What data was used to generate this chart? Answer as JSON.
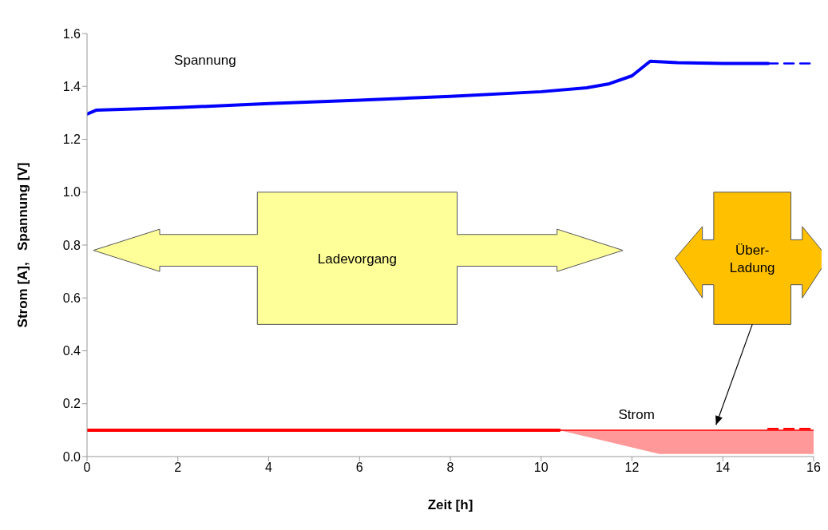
{
  "chart_data": {
    "type": "line",
    "xlabel": "Zeit [h]",
    "ylabel": "Strom [A],   Spannung [V]",
    "xlim": [
      0,
      16
    ],
    "ylim": [
      0,
      1.6
    ],
    "xticks": [
      0,
      2,
      4,
      6,
      8,
      10,
      12,
      14,
      16
    ],
    "yticks": [
      {
        "value": 0,
        "label": "0.0"
      },
      {
        "value": 0.2,
        "label": "0.2"
      },
      {
        "value": 0.4,
        "label": "0.4"
      },
      {
        "value": 0.6,
        "label": "0.6"
      },
      {
        "value": 0.8,
        "label": "0.8"
      },
      {
        "value": 1,
        "label": "1.0"
      },
      {
        "value": 1.2,
        "label": "1.2"
      },
      {
        "value": 1.4,
        "label": "1.4"
      },
      {
        "value": 1.6,
        "label": "1.6"
      }
    ],
    "marker": "none",
    "series": [
      {
        "color": "#0000ff",
        "line_style": "solid",
        "x": [
          0,
          0.2,
          2,
          4,
          6,
          8,
          10,
          11,
          11.5,
          12,
          12.4,
          13,
          14,
          15
        ],
        "values": [
          1.295,
          1.31,
          1.32,
          1.335,
          1.348,
          1.362,
          1.38,
          1.395,
          1.41,
          1.44,
          1.495,
          1.49,
          1.487,
          1.487
        ]
      },
      {
        "color": "#0000ff",
        "line_style": "dashed",
        "x": [
          15,
          16
        ],
        "values": [
          1.487,
          1.487
        ]
      },
      {
        "color": "#ff0000",
        "line_style": "solid",
        "x": [
          0,
          10.4
        ],
        "values": [
          0.1,
          0.1
        ]
      },
      {
        "color": "#ff0000",
        "line_style": "solid",
        "x": [
          10.4,
          12.6,
          16
        ],
        "values": [
          0.1,
          0.1,
          0.1
        ],
        "lower": [
          0.1,
          0.01,
          0.01
        ],
        "upper": [
          0.1,
          0.1,
          0.1
        ]
      },
      {
        "color": "#ff0000",
        "line_style": "dashed",
        "x": [
          15,
          16
        ],
        "values": [
          0.105,
          0.105
        ]
      }
    ],
    "annotations": [
      "Spannung",
      "Strom",
      "Ladevorgang",
      "Über-Ladung"
    ]
  }
}
